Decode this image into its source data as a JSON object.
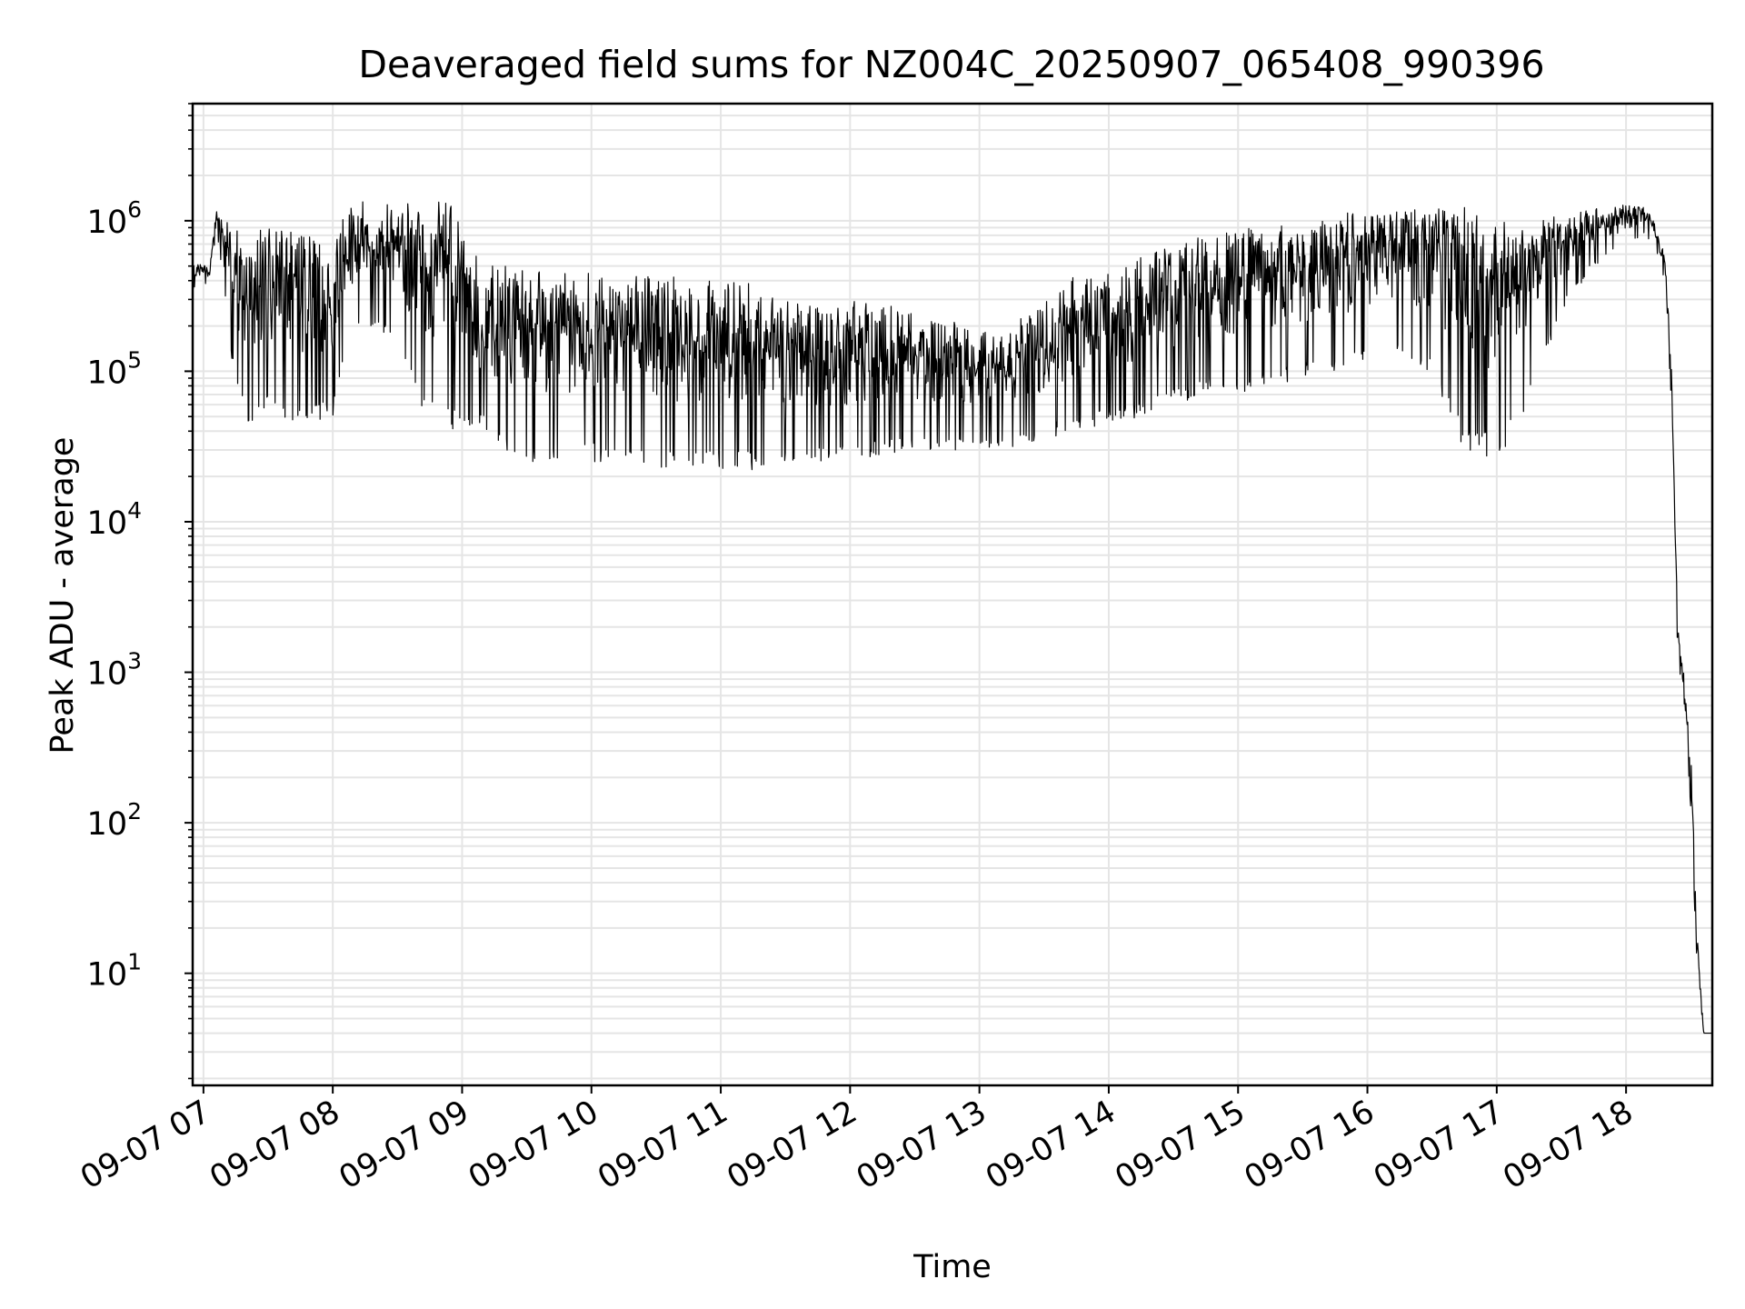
{
  "chart_data": {
    "type": "line",
    "title": "Deaveraged field sums for NZ004C_20250907_065408_990396",
    "xlabel": "Time",
    "ylabel": "Peak ADU - average",
    "yscale": "log",
    "ylim": [
      1.8,
      6000000
    ],
    "xlim": [
      "09-07 06:55",
      "09-07 18:40"
    ],
    "grid": true,
    "line_color": "#000000",
    "grid_color": "#e5e5e5",
    "x_ticks": [
      "09-07 07",
      "09-07 08",
      "09-07 09",
      "09-07 10",
      "09-07 11",
      "09-07 12",
      "09-07 13",
      "09-07 14",
      "09-07 15",
      "09-07 16",
      "09-07 17",
      "09-07 18"
    ],
    "y_ticks": [
      {
        "value": 10,
        "base": "10",
        "exp": "1"
      },
      {
        "value": 100,
        "base": "10",
        "exp": "2"
      },
      {
        "value": 1000,
        "base": "10",
        "exp": "3"
      },
      {
        "value": 10000,
        "base": "10",
        "exp": "4"
      },
      {
        "value": 100000,
        "base": "10",
        "exp": "5"
      },
      {
        "value": 1000000,
        "base": "10",
        "exp": "6"
      }
    ],
    "series": [
      {
        "x": [
          "06:55",
          "07:03",
          "07:06",
          "07:10",
          "07:15",
          "07:20",
          "07:25",
          "07:30",
          "07:40",
          "07:50",
          "08:00",
          "08:10",
          "08:20",
          "08:30",
          "08:40",
          "08:50",
          "09:00",
          "09:10",
          "09:20",
          "09:30",
          "09:45",
          "10:00",
          "10:15",
          "10:30",
          "10:45",
          "11:00",
          "11:15",
          "11:30",
          "11:45",
          "12:00",
          "12:15",
          "12:30",
          "12:45",
          "13:00",
          "13:15",
          "13:30",
          "13:45",
          "14:00",
          "14:15",
          "14:30",
          "14:45",
          "15:00",
          "15:15",
          "15:30",
          "15:45",
          "16:00",
          "16:15",
          "16:30",
          "16:45",
          "17:00",
          "17:15",
          "17:30",
          "17:45",
          "18:00",
          "18:08",
          "18:13",
          "18:18",
          "18:21",
          "18:24",
          "18:27",
          "18:30",
          "18:33",
          "18:36",
          "18:40"
        ],
        "y_high": [
          550000,
          520000,
          1200000,
          1000000,
          900000,
          900000,
          900000,
          900000,
          900000,
          800000,
          800000,
          1500000,
          1200000,
          1500000,
          1200000,
          1700000,
          900000,
          500000,
          500000,
          480000,
          460000,
          450000,
          450000,
          430000,
          420000,
          410000,
          400000,
          330000,
          300000,
          300000,
          280000,
          250000,
          230000,
          180000,
          200000,
          300000,
          450000,
          500000,
          600000,
          700000,
          800000,
          900000,
          1000000,
          1000000,
          1100000,
          1200000,
          1300000,
          1400000,
          1500000,
          1200000,
          1100000,
          1100000,
          1200000,
          1300000,
          1300000,
          1000000,
          600000,
          120000,
          2000,
          1000,
          300,
          20,
          4,
          4
        ],
        "y_low": [
          350000,
          380000,
          900000,
          300000,
          70000,
          45000,
          45000,
          60000,
          40000,
          45000,
          50000,
          200000,
          200000,
          150000,
          60000,
          40000,
          40000,
          40000,
          30000,
          25000,
          25000,
          25000,
          25000,
          22000,
          22000,
          22000,
          22000,
          25000,
          25000,
          25000,
          28000,
          30000,
          30000,
          30000,
          30000,
          35000,
          40000,
          45000,
          50000,
          60000,
          70000,
          70000,
          80000,
          90000,
          100000,
          120000,
          140000,
          90000,
          30000,
          25000,
          60000,
          250000,
          500000,
          700000,
          800000,
          700000,
          400000,
          60000,
          1200,
          600,
          120,
          10,
          4,
          4
        ]
      }
    ]
  }
}
